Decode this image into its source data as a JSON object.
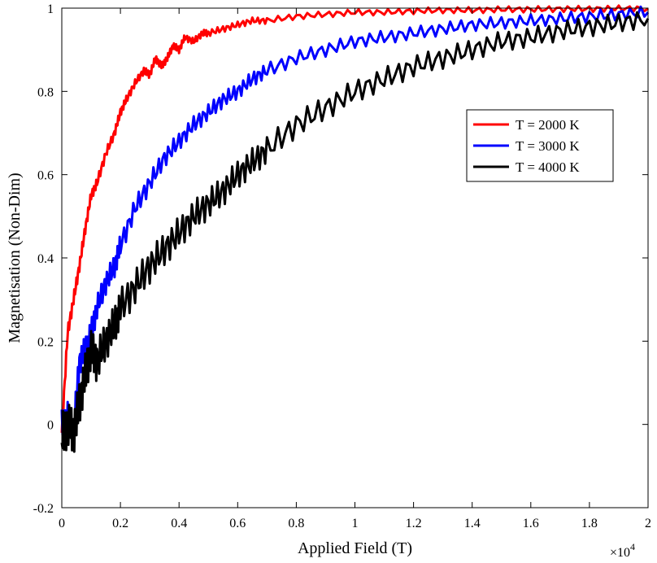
{
  "chart_data": {
    "type": "line",
    "xlabel": "Applied Field (T)",
    "ylabel": "Magnetisation (Non-Dim)",
    "x_exponent_label": "×10",
    "x_exponent_power": "4",
    "xlim": [
      0,
      2
    ],
    "ylim": [
      -0.2,
      1
    ],
    "xticks": [
      0,
      0.2,
      0.4,
      0.6,
      0.8,
      1,
      1.2,
      1.4,
      1.6,
      1.8,
      2
    ],
    "xtick_labels": [
      "0",
      "0.2",
      "0.4",
      "0.6",
      "0.8",
      "1",
      "1.2",
      "1.4",
      "1.6",
      "1.8",
      "2"
    ],
    "yticks": [
      -0.2,
      0,
      0.2,
      0.4,
      0.6,
      0.8,
      1
    ],
    "ytick_labels": [
      "-0.2",
      "0",
      "0.2",
      "0.4",
      "0.6",
      "0.8",
      "1"
    ],
    "grid": false,
    "legend_position": "right",
    "series": [
      {
        "name": "T = 2000 K",
        "color": "#ff0000",
        "x": [
          0.0,
          0.02,
          0.04,
          0.06,
          0.08,
          0.1,
          0.12,
          0.15,
          0.18,
          0.2,
          0.22,
          0.25,
          0.28,
          0.3,
          0.32,
          0.34,
          0.36,
          0.38,
          0.4,
          0.42,
          0.45,
          0.48,
          0.5,
          0.55,
          0.6,
          0.65,
          0.7,
          0.8,
          0.9,
          1.0,
          1.1,
          1.2,
          1.3,
          1.4,
          1.5,
          1.6,
          1.7,
          1.8,
          1.9,
          2.0
        ],
        "y": [
          -0.02,
          0.22,
          0.3,
          0.38,
          0.47,
          0.55,
          0.58,
          0.65,
          0.7,
          0.75,
          0.78,
          0.82,
          0.85,
          0.84,
          0.88,
          0.86,
          0.88,
          0.91,
          0.9,
          0.93,
          0.92,
          0.94,
          0.94,
          0.95,
          0.96,
          0.97,
          0.97,
          0.98,
          0.985,
          0.99,
          0.99,
          0.993,
          0.995,
          0.995,
          0.997,
          0.997,
          0.998,
          0.998,
          0.999,
          0.999
        ]
      },
      {
        "name": "T = 3000 K",
        "color": "#0000ff",
        "x": [
          0.0,
          0.02,
          0.04,
          0.06,
          0.08,
          0.1,
          0.12,
          0.15,
          0.18,
          0.2,
          0.25,
          0.3,
          0.35,
          0.4,
          0.45,
          0.5,
          0.55,
          0.6,
          0.65,
          0.7,
          0.8,
          0.9,
          1.0,
          1.1,
          1.2,
          1.3,
          1.4,
          1.5,
          1.6,
          1.7,
          1.8,
          1.9,
          2.0
        ],
        "y": [
          0.0,
          0.02,
          -0.02,
          0.15,
          0.18,
          0.22,
          0.28,
          0.34,
          0.38,
          0.43,
          0.52,
          0.58,
          0.64,
          0.68,
          0.72,
          0.75,
          0.78,
          0.8,
          0.83,
          0.85,
          0.88,
          0.9,
          0.92,
          0.93,
          0.94,
          0.95,
          0.96,
          0.965,
          0.97,
          0.975,
          0.98,
          0.985,
          0.99
        ]
      },
      {
        "name": "T = 4000 K",
        "color": "#000000",
        "x": [
          0.0,
          0.02,
          0.04,
          0.06,
          0.08,
          0.1,
          0.12,
          0.15,
          0.18,
          0.2,
          0.25,
          0.3,
          0.35,
          0.4,
          0.45,
          0.5,
          0.55,
          0.6,
          0.65,
          0.7,
          0.8,
          0.9,
          1.0,
          1.1,
          1.2,
          1.3,
          1.4,
          1.5,
          1.6,
          1.7,
          1.8,
          1.9,
          2.0
        ],
        "y": [
          -0.03,
          0.0,
          -0.02,
          0.05,
          0.12,
          0.18,
          0.15,
          0.2,
          0.24,
          0.28,
          0.33,
          0.38,
          0.42,
          0.46,
          0.5,
          0.53,
          0.56,
          0.6,
          0.63,
          0.66,
          0.72,
          0.76,
          0.8,
          0.83,
          0.86,
          0.88,
          0.9,
          0.92,
          0.93,
          0.945,
          0.955,
          0.965,
          0.975
        ]
      }
    ]
  }
}
